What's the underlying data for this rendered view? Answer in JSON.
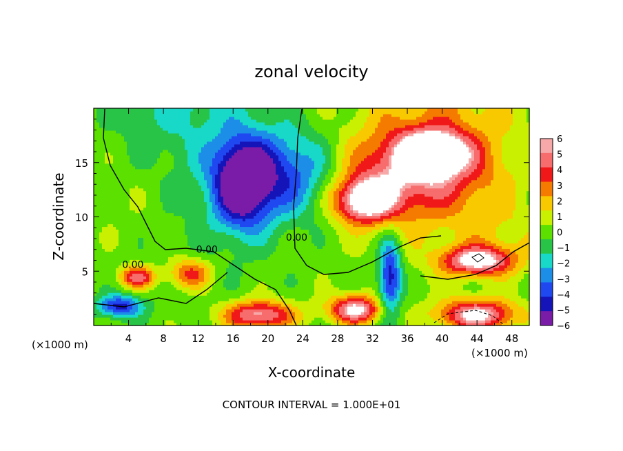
{
  "chart_data": {
    "type": "heatmap",
    "title": "zonal velocity",
    "xlabel": "X-coordinate",
    "ylabel": "Z-coordinate",
    "x_unit_label": "(×1000 m)",
    "x_unit_label_right": "(×1000 m)",
    "footer": "CONTOUR INTERVAL = 1.000E+01",
    "xlim": [
      0,
      50
    ],
    "ylim": [
      0,
      20
    ],
    "xticks": [
      "4",
      "8",
      "12",
      "16",
      "20",
      "24",
      "28",
      "32",
      "36",
      "40",
      "44",
      "48"
    ],
    "yticks": [
      "5",
      "10",
      "15"
    ],
    "colorbar": {
      "range": [
        -6,
        6
      ],
      "labels": [
        "6",
        "5",
        "4",
        "3",
        "2",
        "1",
        "0",
        "−1",
        "−2",
        "−3",
        "−4",
        "−5",
        "−6"
      ],
      "colors": [
        "#f7a8a8",
        "#f76d6d",
        "#f01818",
        "#f57a00",
        "#f9c900",
        "#c9f000",
        "#5ce000",
        "#28c448",
        "#18d8c8",
        "#1c8ee8",
        "#2048f0",
        "#1414b8",
        "#7a1ca8"
      ]
    },
    "contour_labels": [
      {
        "text": "0.00",
        "x": 4.5,
        "z": 5.3
      },
      {
        "text": "0.00",
        "x": 13.0,
        "z": 6.7
      },
      {
        "text": "0.00",
        "x": 23.3,
        "z": 7.8
      }
    ],
    "blobs": [
      {
        "x": 22,
        "z": 14,
        "v": -4.5,
        "sx": 6.5,
        "sz": 4
      },
      {
        "x": 17,
        "z": 13,
        "v": -6.5,
        "sx": 3.2,
        "sz": 4
      },
      {
        "x": 36,
        "z": 14,
        "v": 4.5,
        "sx": 9,
        "sz": 4
      },
      {
        "x": 31,
        "z": 11.5,
        "v": 6.5,
        "sx": 3.5,
        "sz": 2
      },
      {
        "x": 39,
        "z": 16,
        "v": 6.5,
        "sx": 4,
        "sz": 2
      },
      {
        "x": 44,
        "z": 6,
        "v": 6.5,
        "sx": 4,
        "sz": 1.3
      },
      {
        "x": 5,
        "z": 4.5,
        "v": 5,
        "sx": 2,
        "sz": 1
      },
      {
        "x": 11,
        "z": 4.8,
        "v": 4,
        "sx": 2.5,
        "sz": 1.4
      },
      {
        "x": 19,
        "z": 1.0,
        "v": 6,
        "sx": 4,
        "sz": 1.3
      },
      {
        "x": 30,
        "z": 1.5,
        "v": 6.5,
        "sx": 3,
        "sz": 1.3
      },
      {
        "x": 44,
        "z": 1.0,
        "v": 6.5,
        "sx": 4.5,
        "sz": 1.4
      },
      {
        "x": 34,
        "z": 4.5,
        "v": -5.5,
        "sx": 1.3,
        "sz": 3.5
      },
      {
        "x": 3,
        "z": 1.8,
        "v": -5,
        "sx": 2.5,
        "sz": 1
      },
      {
        "x": 6,
        "z": 12,
        "v": 1,
        "sx": 7,
        "sz": 6
      },
      {
        "x": 47,
        "z": 8,
        "v": 1,
        "sx": 5,
        "sz": 3
      }
    ]
  }
}
